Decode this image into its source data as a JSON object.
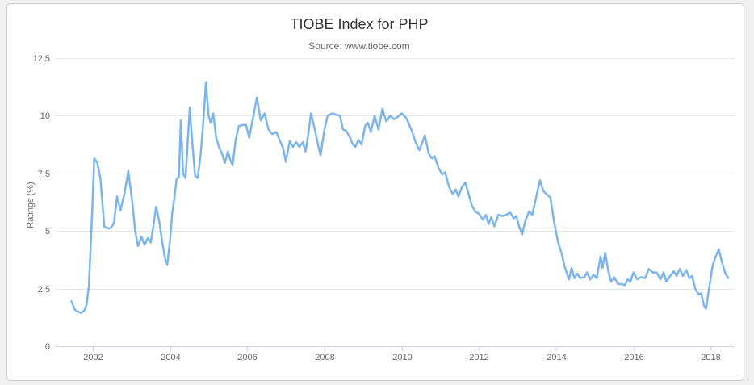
{
  "frame": {
    "page_background": "#f0f0f0",
    "panel_background": "#ffffff",
    "panel_border_color": "#cccccc"
  },
  "chart_data": {
    "type": "line",
    "title": "TIOBE Index for PHP",
    "subtitle": "Source: www.tiobe.com",
    "xlabel": "",
    "ylabel": "Ratings (%)",
    "legend": "none",
    "grid": "horizontal",
    "xlim": [
      2001.02,
      2018.62
    ],
    "ylim": [
      0,
      12.5
    ],
    "x_ticks": [
      2002,
      2004,
      2006,
      2008,
      2010,
      2012,
      2014,
      2016,
      2018
    ],
    "y_ticks": [
      0,
      2.5,
      5,
      7.5,
      10,
      12.5
    ],
    "colors": {
      "series": "#7cb5ec",
      "grid": "#e6e6e6",
      "axis": "#ccd6eb",
      "title_text": "#333333",
      "axis_text": "#666666"
    },
    "series": [
      {
        "name": "PHP",
        "points": [
          [
            2001.45,
            1.95
          ],
          [
            2001.53,
            1.6
          ],
          [
            2001.62,
            1.5
          ],
          [
            2001.7,
            1.45
          ],
          [
            2001.78,
            1.55
          ],
          [
            2001.84,
            1.8
          ],
          [
            2001.9,
            2.6
          ],
          [
            2001.97,
            5.2
          ],
          [
            2002.04,
            8.15
          ],
          [
            2002.12,
            7.95
          ],
          [
            2002.2,
            7.25
          ],
          [
            2002.3,
            5.2
          ],
          [
            2002.4,
            5.1
          ],
          [
            2002.48,
            5.15
          ],
          [
            2002.55,
            5.35
          ],
          [
            2002.63,
            6.5
          ],
          [
            2002.72,
            5.9
          ],
          [
            2002.82,
            6.6
          ],
          [
            2002.92,
            7.6
          ],
          [
            2003.02,
            6.3
          ],
          [
            2003.1,
            5.0
          ],
          [
            2003.17,
            4.35
          ],
          [
            2003.26,
            4.75
          ],
          [
            2003.34,
            4.4
          ],
          [
            2003.43,
            4.7
          ],
          [
            2003.5,
            4.5
          ],
          [
            2003.57,
            5.2
          ],
          [
            2003.64,
            6.05
          ],
          [
            2003.72,
            5.45
          ],
          [
            2003.8,
            4.5
          ],
          [
            2003.88,
            3.75
          ],
          [
            2003.93,
            3.55
          ],
          [
            2004.0,
            4.6
          ],
          [
            2004.06,
            5.8
          ],
          [
            2004.12,
            6.5
          ],
          [
            2004.17,
            7.25
          ],
          [
            2004.23,
            7.35
          ],
          [
            2004.28,
            9.8
          ],
          [
            2004.34,
            7.5
          ],
          [
            2004.4,
            7.3
          ],
          [
            2004.45,
            8.6
          ],
          [
            2004.51,
            10.35
          ],
          [
            2004.58,
            8.8
          ],
          [
            2004.65,
            7.4
          ],
          [
            2004.72,
            7.3
          ],
          [
            2004.8,
            8.4
          ],
          [
            2004.87,
            9.9
          ],
          [
            2004.93,
            11.45
          ],
          [
            2005.0,
            10.0
          ],
          [
            2005.05,
            9.7
          ],
          [
            2005.12,
            10.1
          ],
          [
            2005.2,
            9.0
          ],
          [
            2005.28,
            8.6
          ],
          [
            2005.35,
            8.35
          ],
          [
            2005.42,
            7.95
          ],
          [
            2005.5,
            8.45
          ],
          [
            2005.56,
            8.1
          ],
          [
            2005.62,
            7.85
          ],
          [
            2005.7,
            8.95
          ],
          [
            2005.78,
            9.55
          ],
          [
            2005.88,
            9.6
          ],
          [
            2005.97,
            9.6
          ],
          [
            2006.05,
            9.05
          ],
          [
            2006.15,
            9.9
          ],
          [
            2006.25,
            10.8
          ],
          [
            2006.35,
            9.8
          ],
          [
            2006.45,
            10.1
          ],
          [
            2006.55,
            9.4
          ],
          [
            2006.65,
            9.2
          ],
          [
            2006.75,
            9.3
          ],
          [
            2006.85,
            8.9
          ],
          [
            2006.93,
            8.6
          ],
          [
            2007.0,
            8.0
          ],
          [
            2007.1,
            8.9
          ],
          [
            2007.18,
            8.65
          ],
          [
            2007.27,
            8.85
          ],
          [
            2007.35,
            8.65
          ],
          [
            2007.44,
            8.85
          ],
          [
            2007.51,
            8.45
          ],
          [
            2007.58,
            9.2
          ],
          [
            2007.65,
            10.1
          ],
          [
            2007.75,
            9.4
          ],
          [
            2007.85,
            8.6
          ],
          [
            2007.9,
            8.3
          ],
          [
            2008.0,
            9.4
          ],
          [
            2008.08,
            10.0
          ],
          [
            2008.2,
            10.1
          ],
          [
            2008.3,
            10.05
          ],
          [
            2008.4,
            10.0
          ],
          [
            2008.48,
            9.4
          ],
          [
            2008.56,
            9.35
          ],
          [
            2008.65,
            9.1
          ],
          [
            2008.72,
            8.8
          ],
          [
            2008.8,
            8.65
          ],
          [
            2008.88,
            8.95
          ],
          [
            2008.96,
            8.75
          ],
          [
            2009.05,
            9.55
          ],
          [
            2009.12,
            9.7
          ],
          [
            2009.2,
            9.3
          ],
          [
            2009.3,
            10.0
          ],
          [
            2009.4,
            9.4
          ],
          [
            2009.5,
            10.3
          ],
          [
            2009.6,
            9.75
          ],
          [
            2009.7,
            10.0
          ],
          [
            2009.8,
            9.85
          ],
          [
            2009.9,
            9.95
          ],
          [
            2010.0,
            10.1
          ],
          [
            2010.12,
            9.9
          ],
          [
            2010.26,
            9.35
          ],
          [
            2010.36,
            8.85
          ],
          [
            2010.46,
            8.5
          ],
          [
            2010.6,
            9.15
          ],
          [
            2010.7,
            8.35
          ],
          [
            2010.78,
            8.15
          ],
          [
            2010.85,
            8.25
          ],
          [
            2010.95,
            7.75
          ],
          [
            2011.05,
            7.45
          ],
          [
            2011.12,
            7.55
          ],
          [
            2011.23,
            6.9
          ],
          [
            2011.32,
            6.6
          ],
          [
            2011.4,
            6.8
          ],
          [
            2011.47,
            6.5
          ],
          [
            2011.56,
            6.9
          ],
          [
            2011.65,
            7.1
          ],
          [
            2011.75,
            6.5
          ],
          [
            2011.82,
            6.1
          ],
          [
            2011.9,
            5.85
          ],
          [
            2012.0,
            5.75
          ],
          [
            2012.1,
            5.5
          ],
          [
            2012.18,
            5.7
          ],
          [
            2012.25,
            5.3
          ],
          [
            2012.32,
            5.6
          ],
          [
            2012.4,
            5.2
          ],
          [
            2012.5,
            5.7
          ],
          [
            2012.6,
            5.65
          ],
          [
            2012.7,
            5.7
          ],
          [
            2012.81,
            5.8
          ],
          [
            2012.9,
            5.55
          ],
          [
            2012.97,
            5.65
          ],
          [
            2013.04,
            5.2
          ],
          [
            2013.12,
            4.85
          ],
          [
            2013.2,
            5.45
          ],
          [
            2013.3,
            5.85
          ],
          [
            2013.38,
            5.7
          ],
          [
            2013.48,
            6.45
          ],
          [
            2013.58,
            7.2
          ],
          [
            2013.66,
            6.75
          ],
          [
            2013.75,
            6.6
          ],
          [
            2013.85,
            6.45
          ],
          [
            2013.95,
            5.35
          ],
          [
            2014.05,
            4.5
          ],
          [
            2014.13,
            4.1
          ],
          [
            2014.22,
            3.45
          ],
          [
            2014.33,
            2.9
          ],
          [
            2014.4,
            3.4
          ],
          [
            2014.47,
            2.95
          ],
          [
            2014.55,
            3.15
          ],
          [
            2014.62,
            2.95
          ],
          [
            2014.73,
            3.0
          ],
          [
            2014.8,
            3.2
          ],
          [
            2014.88,
            2.9
          ],
          [
            2014.97,
            3.1
          ],
          [
            2015.05,
            2.95
          ],
          [
            2015.15,
            3.9
          ],
          [
            2015.2,
            3.4
          ],
          [
            2015.27,
            4.05
          ],
          [
            2015.35,
            3.25
          ],
          [
            2015.42,
            2.8
          ],
          [
            2015.5,
            3.0
          ],
          [
            2015.6,
            2.7
          ],
          [
            2015.7,
            2.7
          ],
          [
            2015.78,
            2.65
          ],
          [
            2015.85,
            2.9
          ],
          [
            2015.92,
            2.8
          ],
          [
            2016.0,
            3.2
          ],
          [
            2016.1,
            2.9
          ],
          [
            2016.2,
            3.0
          ],
          [
            2016.3,
            2.95
          ],
          [
            2016.4,
            3.35
          ],
          [
            2016.5,
            3.2
          ],
          [
            2016.6,
            3.2
          ],
          [
            2016.7,
            2.9
          ],
          [
            2016.78,
            3.2
          ],
          [
            2016.85,
            2.8
          ],
          [
            2016.95,
            3.05
          ],
          [
            2017.05,
            3.25
          ],
          [
            2017.12,
            3.05
          ],
          [
            2017.2,
            3.35
          ],
          [
            2017.28,
            3.05
          ],
          [
            2017.37,
            3.3
          ],
          [
            2017.45,
            2.95
          ],
          [
            2017.52,
            3.05
          ],
          [
            2017.6,
            2.5
          ],
          [
            2017.68,
            2.25
          ],
          [
            2017.75,
            2.3
          ],
          [
            2017.83,
            1.75
          ],
          [
            2017.88,
            1.62
          ],
          [
            2017.95,
            2.4
          ],
          [
            2018.05,
            3.5
          ],
          [
            2018.13,
            3.9
          ],
          [
            2018.21,
            4.2
          ],
          [
            2018.3,
            3.6
          ],
          [
            2018.38,
            3.15
          ],
          [
            2018.46,
            2.95
          ]
        ]
      }
    ]
  }
}
